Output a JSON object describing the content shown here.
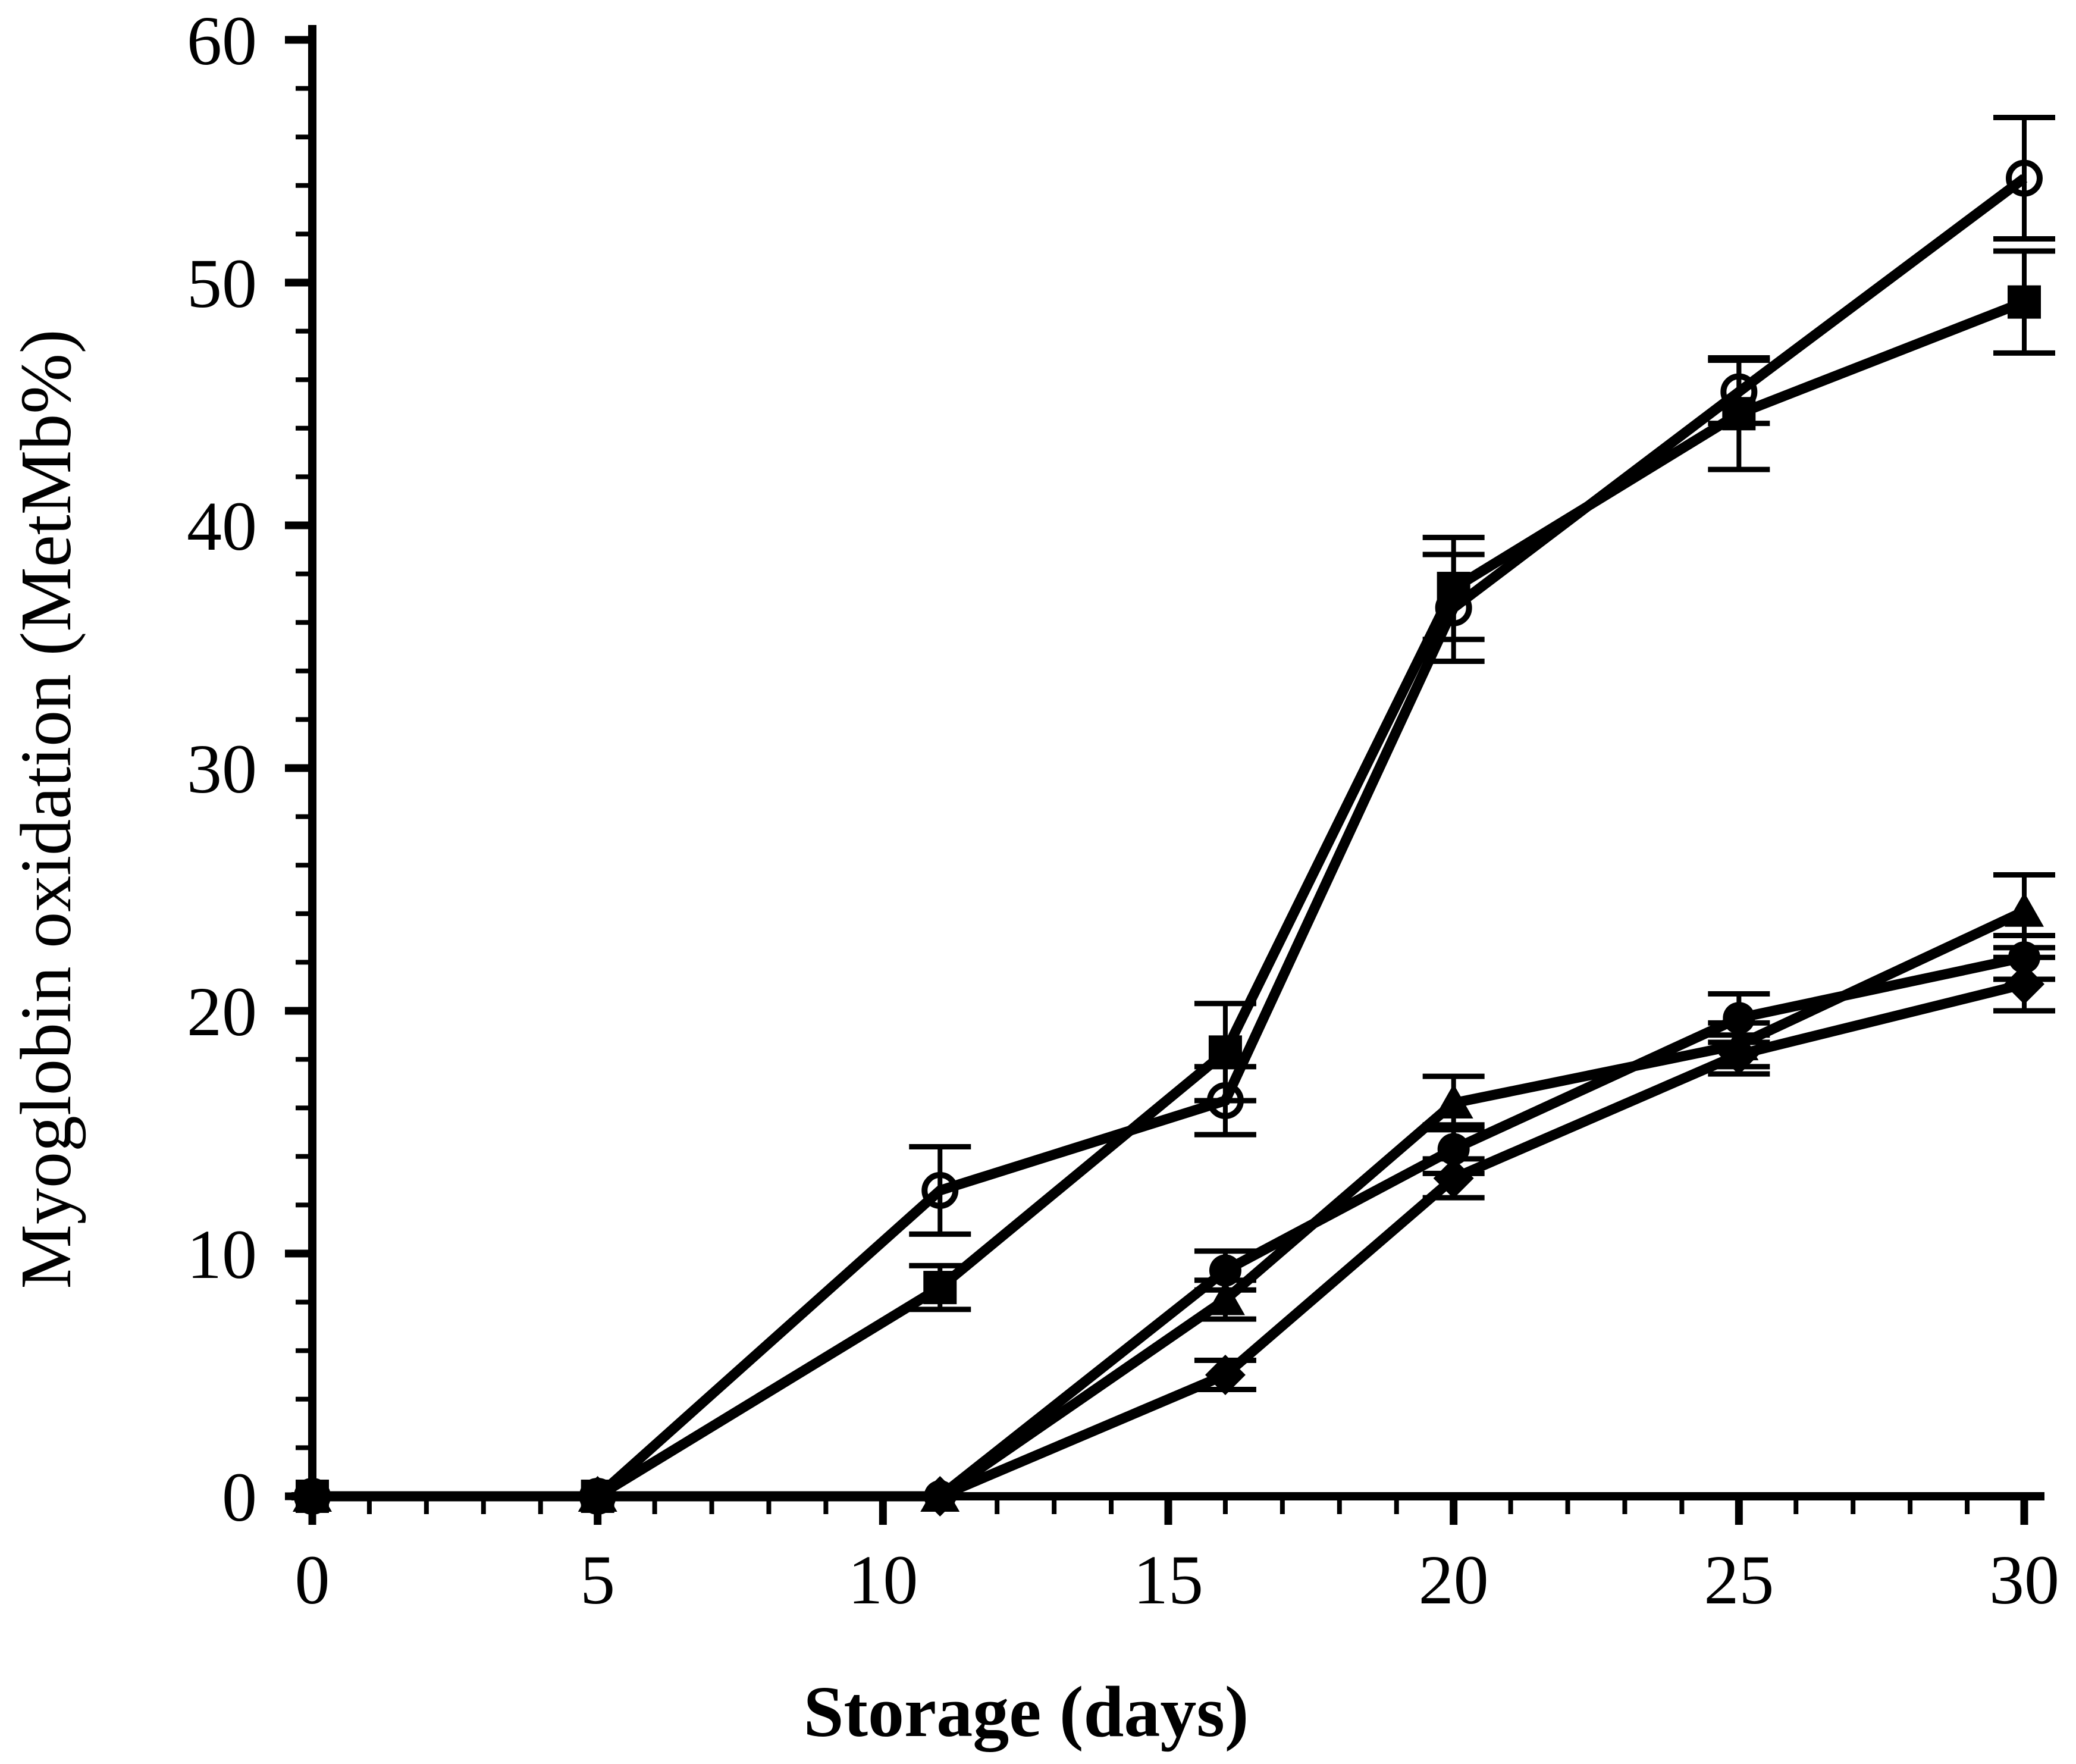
{
  "chart_data": {
    "type": "line",
    "title": "",
    "xlabel": "Storage (days)",
    "ylabel": "Myoglobin oxidation (MetMb%)",
    "x": [
      0,
      5,
      11,
      16,
      20,
      25,
      30
    ],
    "xlim": [
      0,
      30
    ],
    "ylim": [
      0,
      60
    ],
    "x_major_ticks": [
      0,
      5,
      10,
      15,
      20,
      25,
      30
    ],
    "x_minor_step": 1,
    "y_major_ticks": [
      0,
      10,
      20,
      30,
      40,
      50,
      60
    ],
    "y_minor_step": 2,
    "grid": false,
    "legend_position": "none",
    "line_color": "#000000",
    "background_color": "#ffffff",
    "error_bars": true,
    "series": [
      {
        "name": "open-circle-series",
        "marker": "open-circle",
        "values": [
          0,
          0,
          12.6,
          16.3,
          36.6,
          45.5,
          54.3
        ],
        "errors": [
          0,
          0,
          1.8,
          1.4,
          2.2,
          1.3,
          2.5
        ]
      },
      {
        "name": "filled-square-series",
        "marker": "filled-square",
        "values": [
          0,
          0,
          8.6,
          18.3,
          37.4,
          44.6,
          49.2
        ],
        "errors": [
          0,
          0,
          0.9,
          2.0,
          2.1,
          2.3,
          2.1
        ]
      },
      {
        "name": "filled-triangle-series",
        "marker": "filled-triangle",
        "values": [
          0,
          0,
          0,
          8.1,
          16.2,
          18.6,
          24.1
        ],
        "errors": [
          0,
          0,
          0,
          0.8,
          1.1,
          0.9,
          1.5
        ]
      },
      {
        "name": "filled-diamond-series",
        "marker": "filled-diamond",
        "values": [
          0,
          0,
          0,
          5.0,
          13.1,
          18.2,
          21.1
        ],
        "errors": [
          0,
          0,
          0,
          0.6,
          0.8,
          0.8,
          1.1
        ]
      },
      {
        "name": "filled-circle-series",
        "marker": "filled-circle",
        "values": [
          0,
          0,
          0,
          9.3,
          14.3,
          19.7,
          22.2
        ],
        "errors": [
          0,
          0,
          0,
          0.8,
          1.0,
          1.0,
          0.9
        ]
      }
    ]
  }
}
